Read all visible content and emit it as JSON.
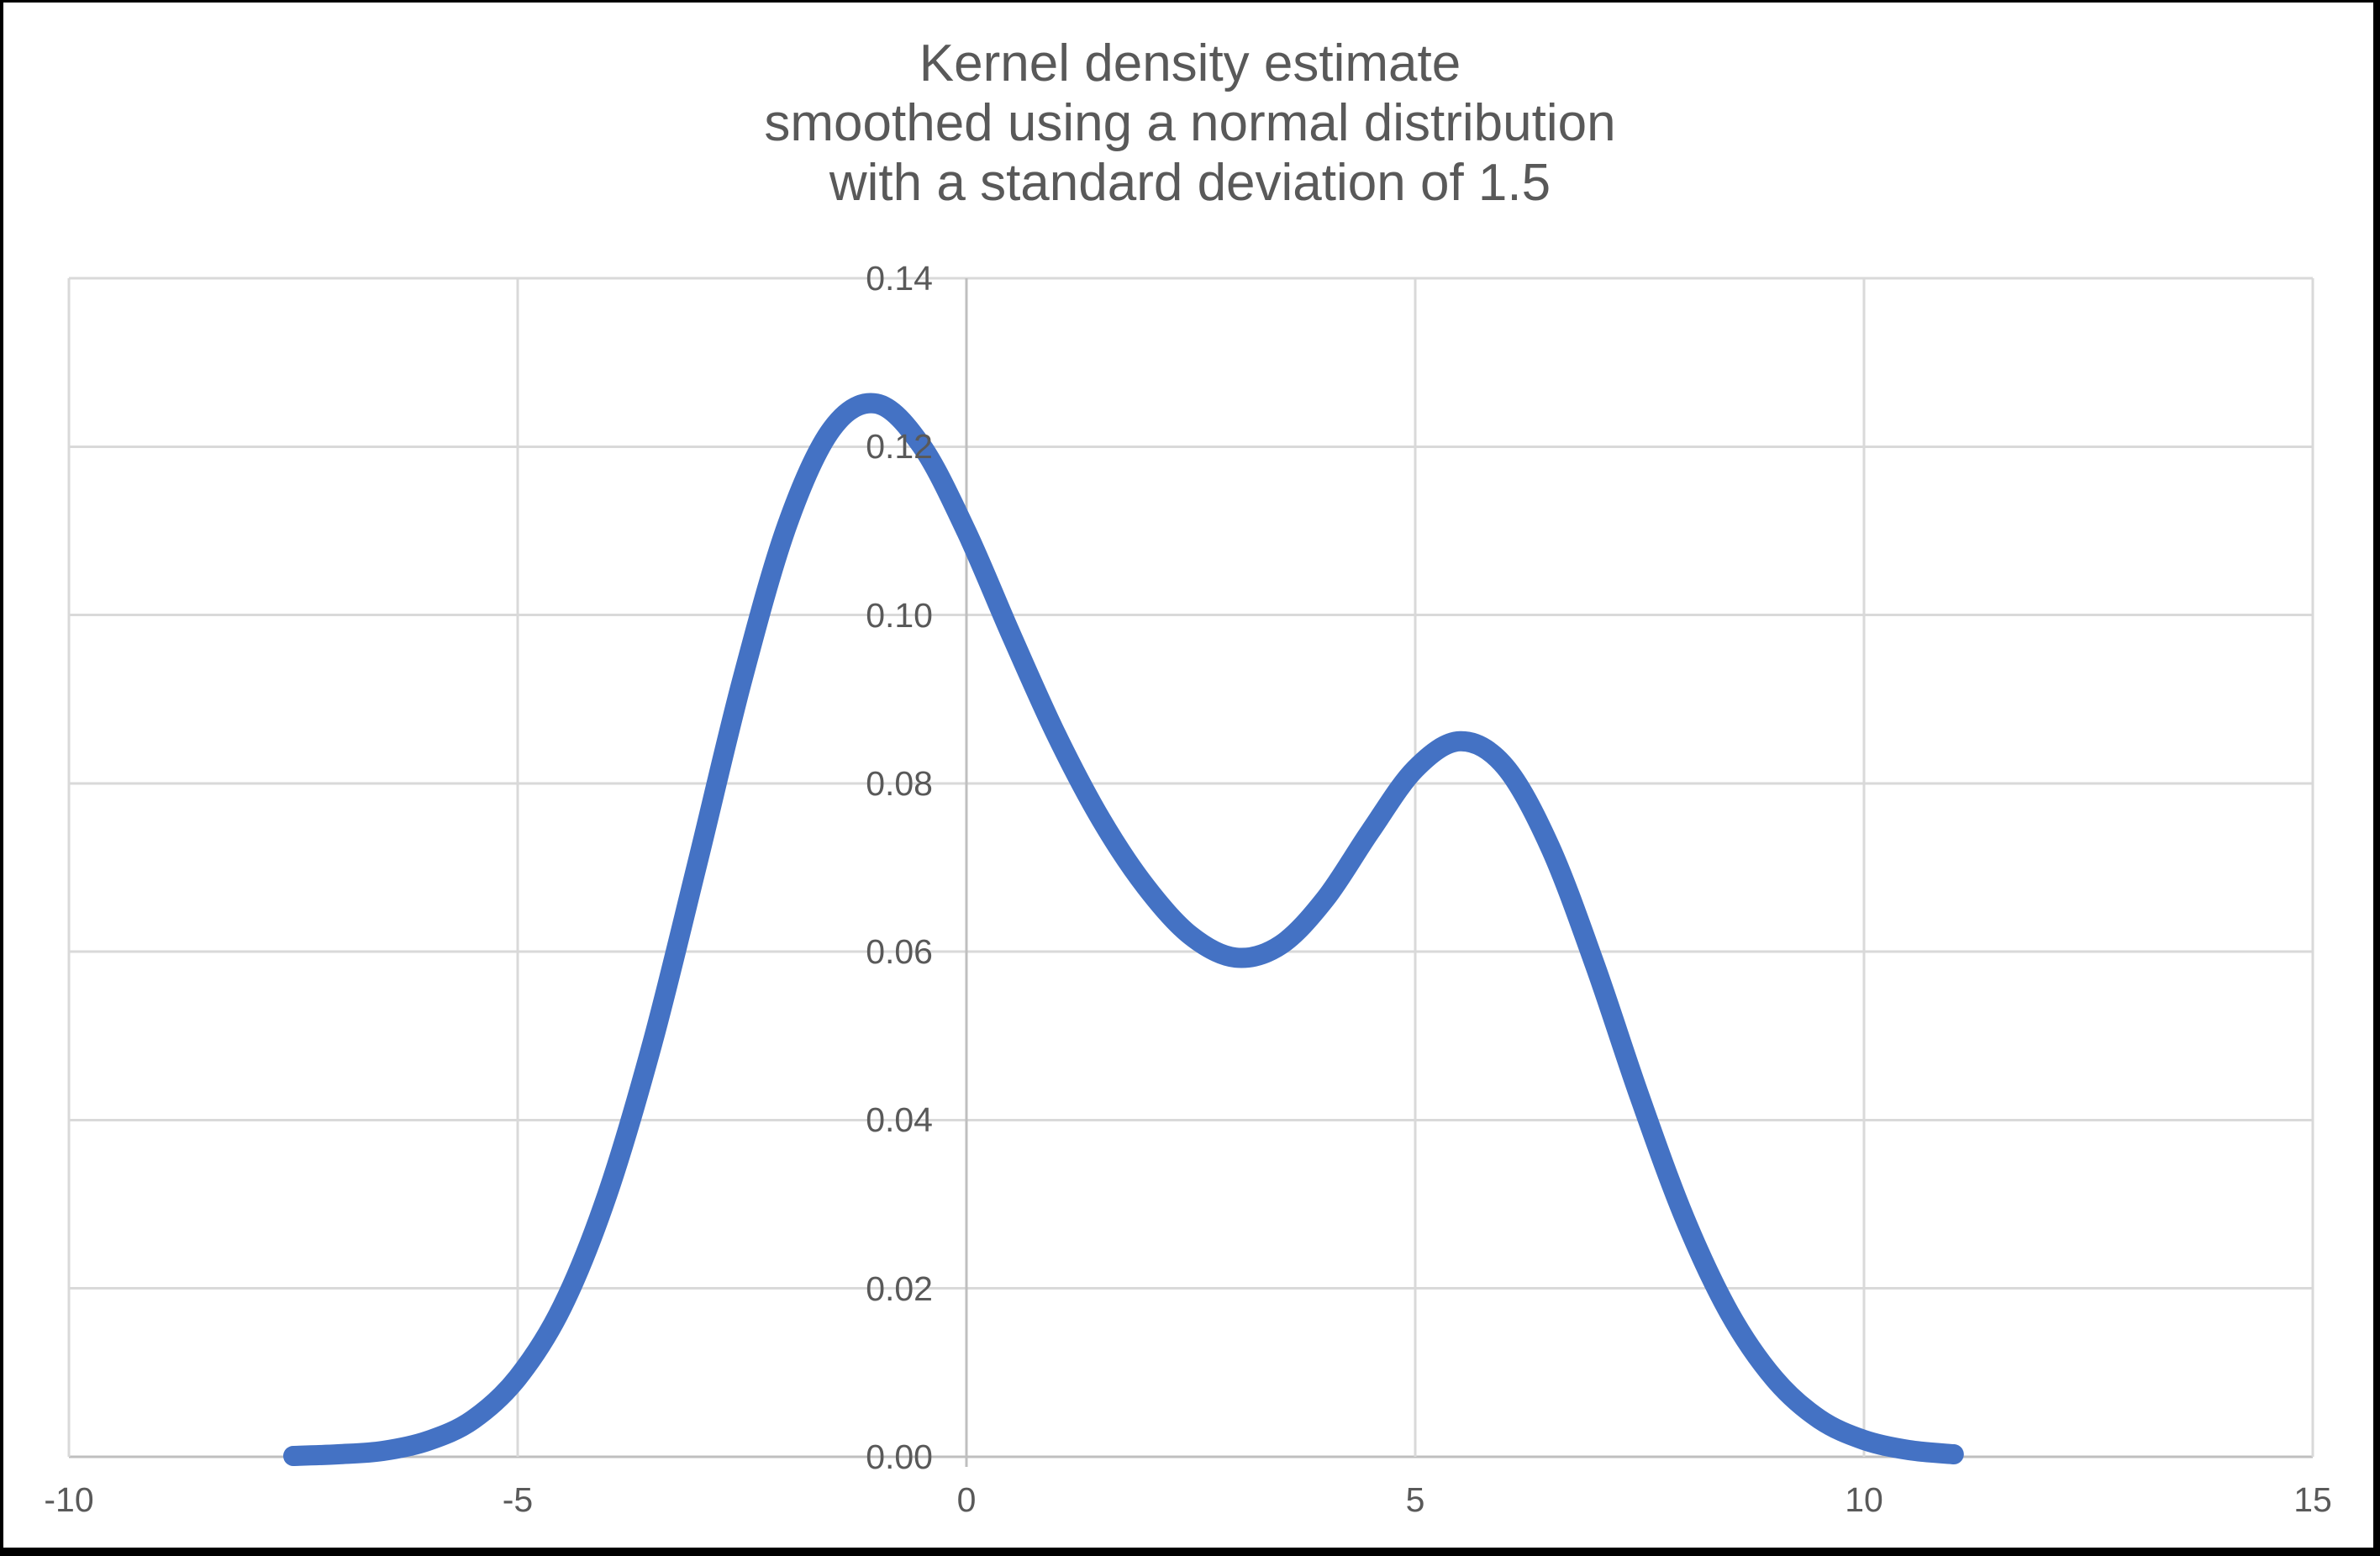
{
  "title": {
    "lines": [
      "Kernel density estimate",
      "smoothed using a normal distribution",
      "with a standard deviation of 1.5"
    ]
  },
  "chart_data": {
    "type": "line",
    "title": "Kernel density estimate smoothed using a normal distribution with a standard deviation of 1.5",
    "xlabel": "",
    "ylabel": "",
    "xlim": [
      -10,
      15
    ],
    "ylim": [
      0,
      0.14
    ],
    "x_ticks": [
      -10,
      -5,
      0,
      5,
      10,
      15
    ],
    "x_tick_labels": [
      "-10",
      "-5",
      "0",
      "5",
      "10",
      "15"
    ],
    "y_ticks": [
      0,
      0.02,
      0.04,
      0.06,
      0.08,
      0.1,
      0.12,
      0.14
    ],
    "y_tick_labels": [
      "0.00",
      "0.02",
      "0.04",
      "0.06",
      "0.08",
      "0.10",
      "0.12",
      "0.14"
    ],
    "y_axis_crosses_x_at": 0,
    "grid": true,
    "legend": false,
    "kernel": "normal",
    "bandwidth_sd": 1.5,
    "series": [
      {
        "name": "kernel density estimate",
        "x": [
          -7.5,
          -7.0,
          -6.5,
          -6.0,
          -5.5,
          -5.0,
          -4.5,
          -4.0,
          -3.5,
          -3.0,
          -2.5,
          -2.0,
          -1.5,
          -1.0,
          -0.5,
          0.0,
          0.5,
          1.0,
          1.5,
          2.0,
          2.5,
          3.0,
          3.5,
          4.0,
          4.5,
          5.0,
          5.5,
          6.0,
          6.5,
          7.0,
          7.5,
          8.0,
          8.5,
          9.0,
          9.5,
          10.0,
          10.5,
          11.0
        ],
        "y": [
          0.0001,
          0.0003,
          0.0007,
          0.0019,
          0.0044,
          0.0094,
          0.0179,
          0.0312,
          0.0491,
          0.0704,
          0.0922,
          0.1106,
          0.1221,
          0.1251,
          0.1201,
          0.1099,
          0.0976,
          0.0858,
          0.0757,
          0.0677,
          0.0619,
          0.0593,
          0.0608,
          0.0663,
          0.0743,
          0.0817,
          0.085,
          0.082,
          0.0725,
          0.0585,
          0.0428,
          0.0284,
          0.0171,
          0.0093,
          0.0045,
          0.002,
          0.0008,
          0.0003
        ],
        "peaks": [
          {
            "x": -1.0,
            "y": 0.125
          },
          {
            "x": 5.5,
            "y": 0.085
          }
        ],
        "trough": {
          "x": 3.0,
          "y": 0.059
        }
      }
    ]
  },
  "colors": {
    "line": "#4472C4",
    "gridline": "#D9D9D9",
    "axis": "#BFBFBF",
    "text": "#595959",
    "background": "#FFFFFF",
    "frame": "#000000"
  }
}
